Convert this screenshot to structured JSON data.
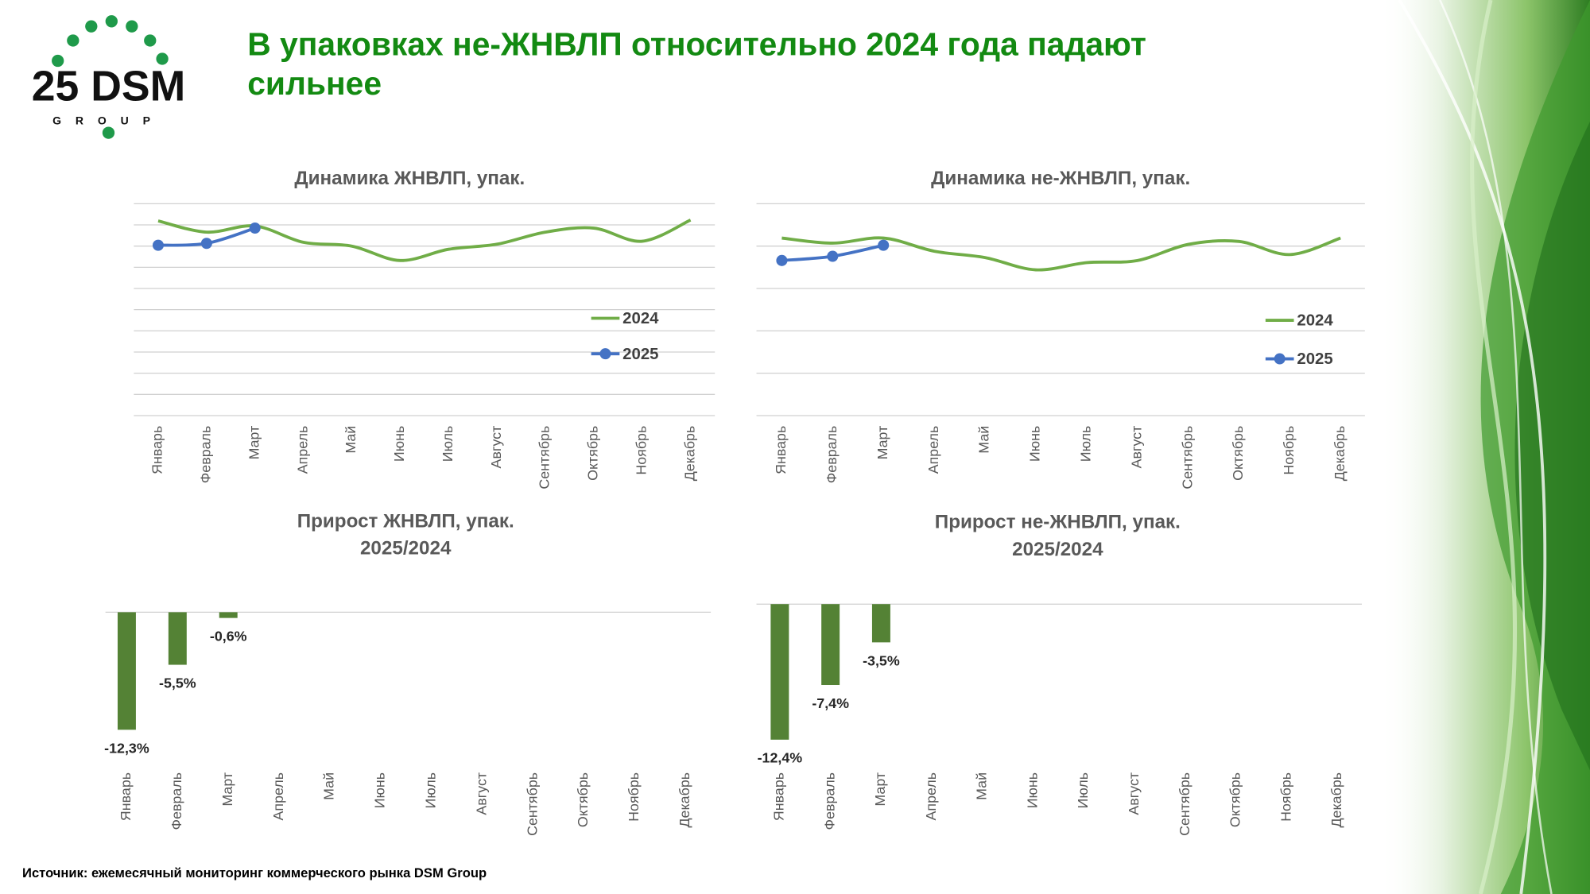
{
  "logo": {
    "main": "25 DSM",
    "sub": "GROUP"
  },
  "header": {
    "title_lines": [
      "В упаковках не-ЖНВЛП относительно 2024 года падают",
      "сильнее"
    ]
  },
  "chart_data": [
    {
      "type": "line",
      "title": "Динамика ЖНВЛП, упак.",
      "categories": [
        "Январь",
        "Февраль",
        "Март",
        "Апрель",
        "Май",
        "Июнь",
        "Июль",
        "Август",
        "Сентябрь",
        "Октябрь",
        "Ноябрь",
        "Декабрь"
      ],
      "series": [
        {
          "name": "2024",
          "color": "#70ad47",
          "values": [
            9.19,
            8.66,
            8.95,
            8.18,
            8.0,
            7.32,
            7.85,
            8.09,
            8.66,
            8.85,
            8.23,
            9.23
          ]
        },
        {
          "name": "2025",
          "color": "#4472c4",
          "values": [
            8.04,
            8.13,
            8.85,
            null,
            null,
            null,
            null,
            null,
            null,
            null,
            null,
            null
          ]
        }
      ],
      "ylim": [
        0,
        10
      ],
      "yticks": [
        0,
        1,
        2,
        3,
        4,
        5,
        6,
        7,
        8,
        9,
        10
      ],
      "grid": true
    },
    {
      "type": "line",
      "title": "Динамика не-ЖНВЛП, упак.",
      "categories": [
        "Январь",
        "Февраль",
        "Март",
        "Апрель",
        "Май",
        "Июнь",
        "Июль",
        "Август",
        "Сентябрь",
        "Октябрь",
        "Ноябрь",
        "Декабрь"
      ],
      "series": [
        {
          "name": "2024",
          "color": "#70ad47",
          "values": [
            4.19,
            4.07,
            4.19,
            3.88,
            3.73,
            3.44,
            3.61,
            3.66,
            4.04,
            4.11,
            3.8,
            4.19
          ]
        },
        {
          "name": "2025",
          "color": "#4472c4",
          "values": [
            3.66,
            3.76,
            4.02,
            null,
            null,
            null,
            null,
            null,
            null,
            null,
            null,
            null
          ]
        }
      ],
      "ylim": [
        0,
        5
      ],
      "yticks": [
        0,
        1,
        2,
        3,
        4,
        5
      ],
      "grid": true
    },
    {
      "type": "bar",
      "title": "Прирост ЖНВЛП, упак.",
      "subtitle": "2025/2024",
      "categories": [
        "Январь",
        "Февраль",
        "Март",
        "Апрель",
        "Май",
        "Июнь",
        "Июль",
        "Август",
        "Сентябрь",
        "Октябрь",
        "Ноябрь",
        "Декабрь"
      ],
      "values": [
        -12.3,
        -5.5,
        -0.6,
        null,
        null,
        null,
        null,
        null,
        null,
        null,
        null,
        null
      ],
      "value_labels": [
        "-12,3%",
        "-5,5%",
        "-0,6%",
        null,
        null,
        null,
        null,
        null,
        null,
        null,
        null,
        null
      ],
      "color": "#548235",
      "ylim": [
        -14,
        0
      ]
    },
    {
      "type": "bar",
      "title": "Прирост не-ЖНВЛП, упак.",
      "subtitle": "2025/2024",
      "categories": [
        "Январь",
        "Февраль",
        "Март",
        "Апрель",
        "Май",
        "Июнь",
        "Июль",
        "Август",
        "Сентябрь",
        "Октябрь",
        "Ноябрь",
        "Декабрь"
      ],
      "values": [
        -12.4,
        -7.4,
        -3.5,
        null,
        null,
        null,
        null,
        null,
        null,
        null,
        null,
        null
      ],
      "value_labels": [
        "-12,4%",
        "-7,4%",
        "-3,5%",
        null,
        null,
        null,
        null,
        null,
        null,
        null,
        null,
        null
      ],
      "color": "#548235",
      "ylim": [
        -14,
        0
      ]
    }
  ],
  "footer": {
    "source": "Источник: ежемесячный мониторинг коммерческого рынка DSM Group"
  }
}
